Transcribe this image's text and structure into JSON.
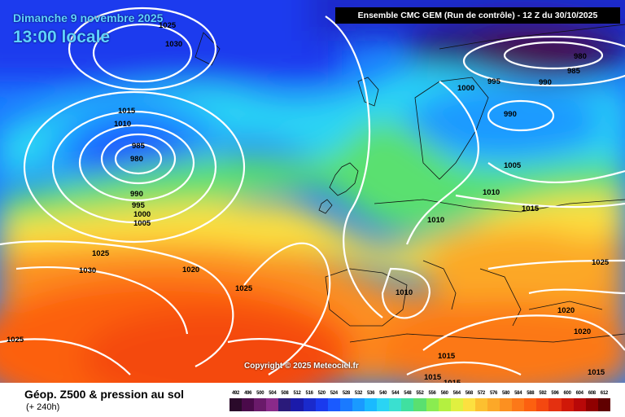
{
  "header": {
    "date": "Dimanche 9 novembre 2025",
    "time": "13:00 locale",
    "run": "Ensemble CMC GEM  (Run de contrôle)  - 12 Z du 30/10/2025"
  },
  "copyright": "Copyright © 2025 Meteociel.fr",
  "footer": {
    "title": "Géop. Z500 & pression au sol",
    "subtitle": "(+ 240h)"
  },
  "legend": {
    "values": [
      "492",
      "496",
      "500",
      "504",
      "508",
      "512",
      "516",
      "520",
      "524",
      "528",
      "532",
      "536",
      "540",
      "544",
      "548",
      "552",
      "556",
      "560",
      "564",
      "568",
      "572",
      "576",
      "580",
      "584",
      "588",
      "592",
      "596",
      "600",
      "604",
      "608",
      "612"
    ],
    "colors": [
      "#2a0a2a",
      "#4a0a4a",
      "#6a1a6a",
      "#8a2a8a",
      "#2a1a7a",
      "#1a1aaa",
      "#1a2acc",
      "#1a3aee",
      "#1a5aff",
      "#1a7aff",
      "#1a9aff",
      "#1abaff",
      "#2ad4f4",
      "#3ae0d0",
      "#40e0a0",
      "#5ae070",
      "#8aec50",
      "#b4f040",
      "#e0f040",
      "#fce040",
      "#fcc030",
      "#fca828",
      "#fc9020",
      "#fc7818",
      "#fc6010",
      "#f44810",
      "#e43010",
      "#d01808",
      "#b80808",
      "#900000",
      "#600000"
    ]
  },
  "pressure_labels": [
    "1025",
    "1030",
    "1015",
    "1010",
    "985",
    "980",
    "990",
    "995",
    "1000",
    "1005",
    "1025",
    "1030",
    "1020",
    "1025",
    "1025",
    "980",
    "985",
    "990",
    "995",
    "1000",
    "990",
    "1005",
    "1010",
    "1015",
    "1010",
    "1025",
    "1010",
    "1020",
    "1020",
    "1015",
    "1015",
    "1015",
    "1015"
  ]
}
